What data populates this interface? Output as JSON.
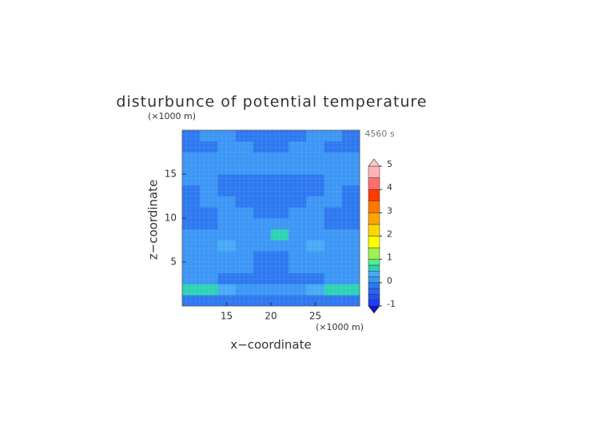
{
  "chart_data": {
    "type": "contour",
    "title": "disturbunce of potential temperature",
    "time_label": "4560 s",
    "x_label": "x−coordinate",
    "y_label": "z−coordinate",
    "x_unit": "(×1000 m)",
    "y_unit": "(×1000 m)",
    "xlim": [
      10,
      30
    ],
    "ylim": [
      0,
      20
    ],
    "xticks": [
      15,
      20,
      25
    ],
    "yticks": [
      5,
      10,
      15
    ],
    "x_edges": [
      10,
      12,
      14,
      16,
      18,
      20,
      22,
      24,
      26,
      28,
      30
    ],
    "z_edges": [
      0,
      1.25,
      2.5,
      3.75,
      5,
      6.25,
      7.5,
      8.75,
      10,
      11.25,
      12.5,
      13.75,
      15,
      16.25,
      17.5,
      18.75,
      20
    ],
    "values": [
      [
        -0.2,
        -0.2,
        -0.2,
        -0.2,
        -0.2,
        -0.2,
        -0.2,
        -0.2,
        -0.2,
        -0.2
      ],
      [
        0.6,
        0.6,
        0.3,
        0.1,
        0.1,
        0.1,
        0.1,
        0.3,
        0.6,
        0.6
      ],
      [
        0.2,
        0.1,
        -0.1,
        -0.1,
        -0.1,
        -0.1,
        -0.1,
        -0.1,
        0.1,
        0.2
      ],
      [
        0.2,
        0.2,
        0.2,
        0.1,
        -0.1,
        -0.1,
        0.1,
        0.2,
        0.2,
        0.2
      ],
      [
        0.1,
        0.2,
        0.2,
        0.2,
        -0.1,
        -0.1,
        0.2,
        0.2,
        0.2,
        0.1
      ],
      [
        0.2,
        0.2,
        0.4,
        0.2,
        0.1,
        0.1,
        0.2,
        0.4,
        0.2,
        0.2
      ],
      [
        0.1,
        0.1,
        0.1,
        0.2,
        0.2,
        0.6,
        0.2,
        0.1,
        0.1,
        0.1
      ],
      [
        -0.1,
        -0.1,
        0.1,
        0.2,
        0.2,
        0.2,
        0.2,
        0.1,
        -0.1,
        -0.1
      ],
      [
        -0.1,
        -0.1,
        0.1,
        0.1,
        -0.1,
        -0.1,
        0.1,
        0.1,
        -0.1,
        -0.1
      ],
      [
        -0.1,
        0.1,
        0.1,
        -0.1,
        -0.1,
        -0.1,
        -0.1,
        0.1,
        0.1,
        -0.1
      ],
      [
        -0.1,
        0.1,
        -0.1,
        -0.1,
        -0.1,
        -0.1,
        -0.1,
        -0.1,
        0.1,
        -0.1
      ],
      [
        0.1,
        0.1,
        -0.1,
        -0.1,
        -0.1,
        -0.1,
        -0.1,
        -0.1,
        0.1,
        0.1
      ],
      [
        0.1,
        0.1,
        0.1,
        0.1,
        0.1,
        0.1,
        0.1,
        0.1,
        0.1,
        0.1
      ],
      [
        0.1,
        0.1,
        0.1,
        0.1,
        0.1,
        0.1,
        0.1,
        0.1,
        0.1,
        0.1
      ],
      [
        -0.1,
        -0.1,
        0.1,
        0.1,
        -0.1,
        -0.1,
        0.1,
        0.1,
        -0.1,
        -0.1
      ],
      [
        -0.1,
        0.1,
        0.1,
        -0.1,
        -0.1,
        -0.1,
        -0.1,
        0.1,
        0.1,
        -0.1
      ]
    ],
    "levels": [
      -1,
      -0.75,
      -0.5,
      -0.25,
      0,
      0.25,
      0.5,
      0.75,
      1,
      1.5,
      2,
      2.5,
      3,
      3.5,
      4,
      4.5,
      5
    ],
    "colors": [
      "#1e3cff",
      "#2850f0",
      "#2d64f0",
      "#2d78f0",
      "#3c96f5",
      "#46aaf5",
      "#2dd2b4",
      "#50f08c",
      "#a0f050",
      "#ffff00",
      "#ffd700",
      "#ffa500",
      "#ff7800",
      "#ff3c00",
      "#ff6e6e",
      "#ffb4b4"
    ],
    "under_color": "#1414c8",
    "over_color": "#ffc8c8",
    "colorbar_ticks": [
      -1,
      0,
      1,
      2,
      3,
      4,
      5
    ]
  }
}
